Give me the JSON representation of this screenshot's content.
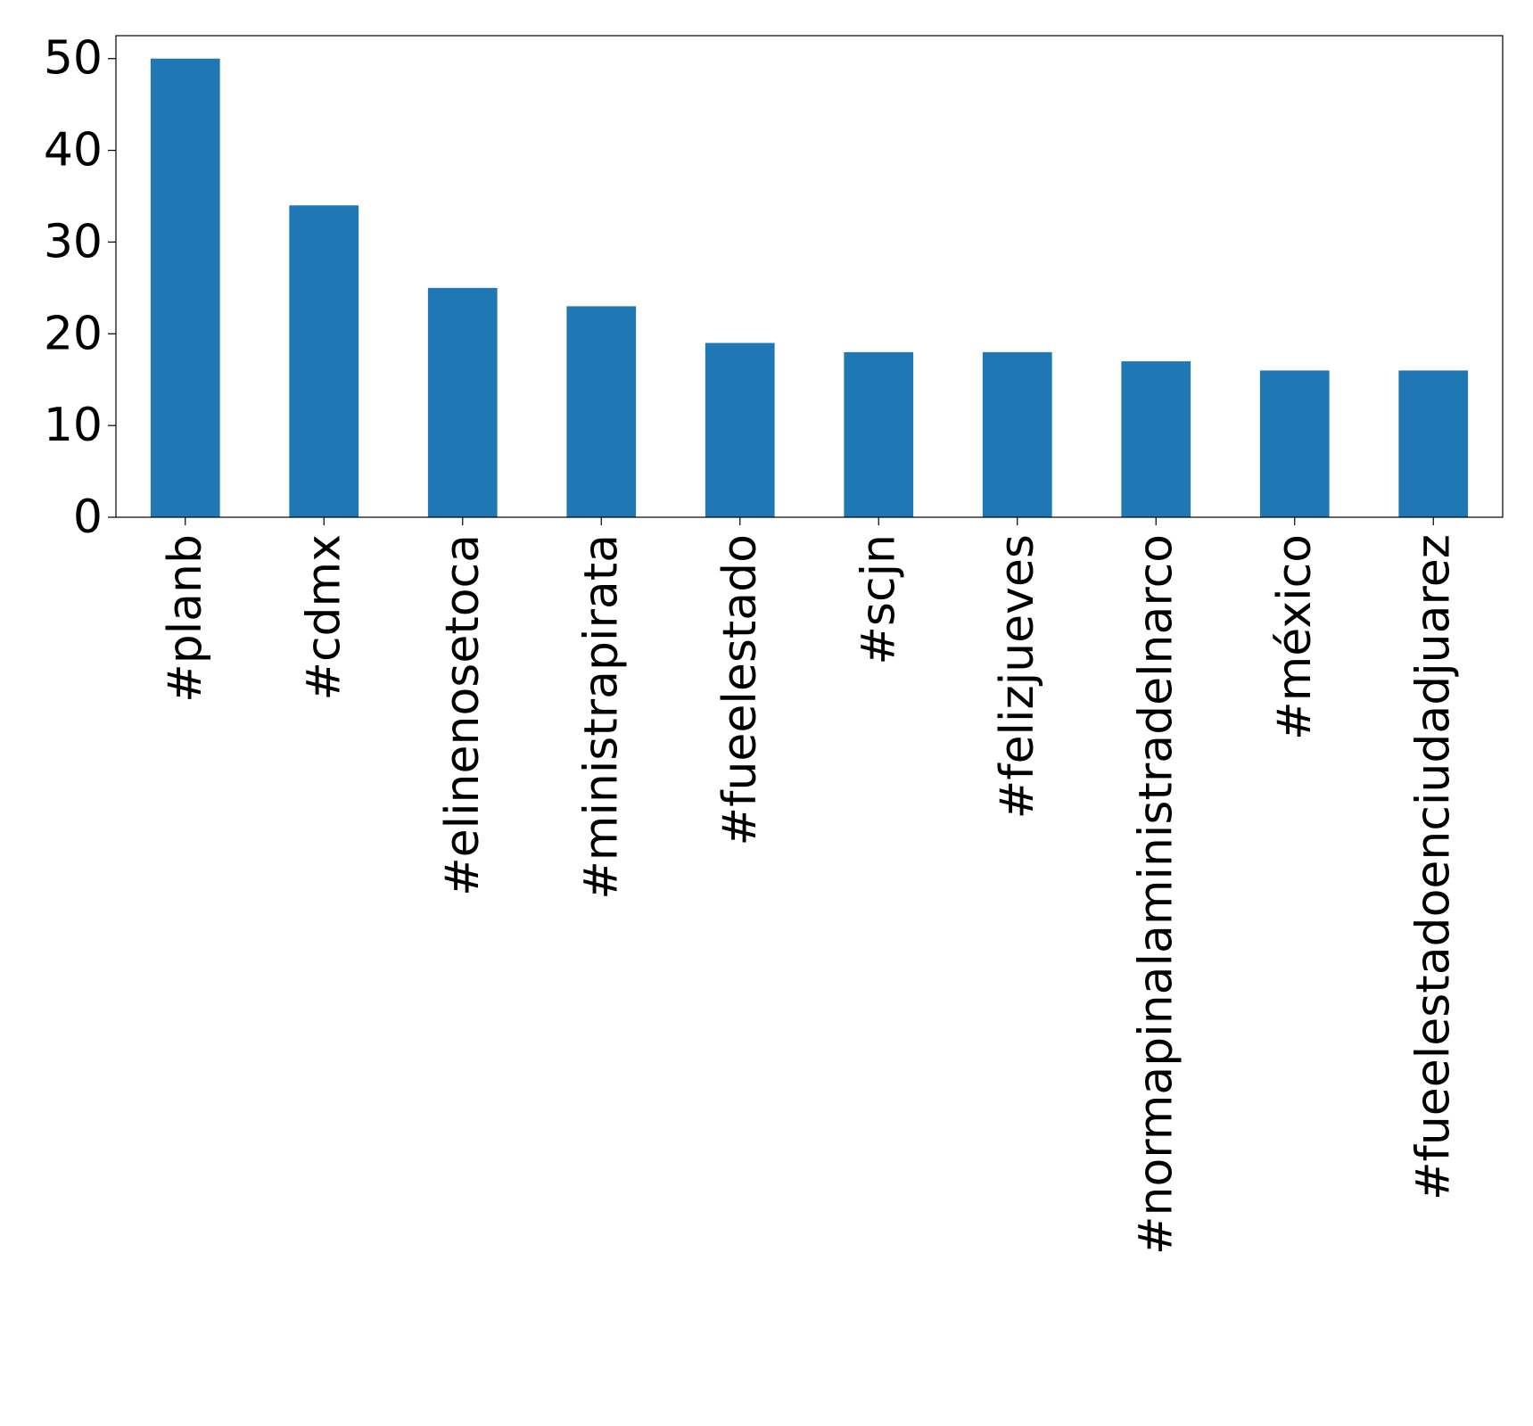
{
  "chart_data": {
    "type": "bar",
    "title": "",
    "xlabel": "",
    "ylabel": "",
    "categories": [
      "#planb",
      "#cdmx",
      "#elinenosetoca",
      "#ministrapirata",
      "#fueelestado",
      "#scjn",
      "#felizjueves",
      "#normapinalaministradelnarco",
      "#méxico",
      "#fueelestadoenciudadjuarez"
    ],
    "values": [
      50,
      34,
      25,
      23,
      19,
      18,
      18,
      17,
      16,
      16
    ],
    "ylim": [
      0,
      52.5
    ],
    "yticks": [
      0,
      10,
      20,
      30,
      40,
      50
    ],
    "bar_color": "#1f77b4",
    "grid": false,
    "legend": "none"
  }
}
